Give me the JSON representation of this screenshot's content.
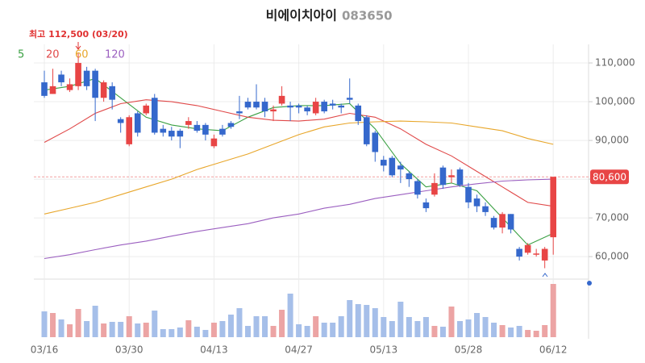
{
  "chart_data": {
    "type": "candlestick",
    "title": "비에이치아이",
    "subtitle": "083650",
    "annotation": "최고 112,500 (03/20)",
    "categories": [
      "03/16",
      null,
      null,
      null,
      null,
      null,
      null,
      null,
      null,
      null,
      "03/30",
      null,
      null,
      null,
      null,
      null,
      null,
      null,
      null,
      null,
      "04/13",
      null,
      null,
      null,
      null,
      null,
      null,
      null,
      null,
      null,
      "04/27",
      null,
      null,
      null,
      null,
      null,
      null,
      null,
      null,
      null,
      "05/13",
      null,
      null,
      null,
      null,
      null,
      null,
      null,
      null,
      null,
      "05/28",
      null,
      null,
      null,
      null,
      null,
      null,
      null,
      null,
      null,
      "06/12"
    ],
    "ohlc": [
      [
        105000,
        108000,
        101000,
        101500
      ],
      [
        102000,
        108500,
        102000,
        104000
      ],
      [
        107000,
        108000,
        104000,
        105000
      ],
      [
        103000,
        106000,
        102500,
        104500
      ],
      [
        104000,
        112500,
        103000,
        110000
      ],
      [
        108000,
        109000,
        103000,
        104000
      ],
      [
        108000,
        108500,
        95000,
        101000
      ],
      [
        101000,
        105500,
        100000,
        105000
      ],
      [
        104000,
        105000,
        98000,
        100500
      ],
      [
        95500,
        96000,
        92000,
        94500
      ],
      [
        89000,
        96500,
        88500,
        96000
      ],
      [
        97000,
        97500,
        91000,
        92000
      ],
      [
        97000,
        99500,
        96500,
        99000
      ],
      [
        101000,
        102000,
        91500,
        92000
      ],
      [
        93000,
        94000,
        91000,
        92000
      ],
      [
        92500,
        93500,
        90000,
        91000
      ],
      [
        92500,
        93000,
        88000,
        91000
      ],
      [
        94000,
        96000,
        93000,
        95000
      ],
      [
        94000,
        95000,
        92000,
        92500
      ],
      [
        94000,
        94500,
        90000,
        91500
      ],
      [
        88500,
        91500,
        88000,
        90500
      ],
      [
        93000,
        94000,
        91000,
        91500
      ],
      [
        94500,
        95000,
        93000,
        93500
      ],
      [
        97500,
        101500,
        95500,
        97000
      ],
      [
        100000,
        101000,
        98000,
        98500
      ],
      [
        100000,
        104500,
        98000,
        98500
      ],
      [
        100000,
        101000,
        96000,
        97500
      ],
      [
        97500,
        99000,
        95000,
        98000
      ],
      [
        99500,
        104000,
        99000,
        101500
      ],
      [
        99000,
        100000,
        95000,
        98500
      ],
      [
        99000,
        99500,
        97000,
        98500
      ],
      [
        98500,
        99000,
        96500,
        97500
      ],
      [
        97000,
        101000,
        96500,
        100000
      ],
      [
        100000,
        100500,
        97000,
        97500
      ],
      [
        99500,
        100500,
        98000,
        99000
      ],
      [
        99000,
        99500,
        97000,
        98500
      ],
      [
        101000,
        106000,
        99500,
        100500
      ],
      [
        99000,
        99500,
        94000,
        95000
      ],
      [
        96000,
        96500,
        88500,
        89000
      ],
      [
        92000,
        92500,
        84500,
        87000
      ],
      [
        85000,
        86000,
        82000,
        83500
      ],
      [
        85500,
        86000,
        80500,
        81000
      ],
      [
        83500,
        84500,
        79000,
        82500
      ],
      [
        81500,
        82000,
        78000,
        80000
      ],
      [
        79500,
        80000,
        75000,
        76000
      ],
      [
        74000,
        75000,
        71500,
        72500
      ],
      [
        76000,
        81500,
        75500,
        79000
      ],
      [
        83000,
        83500,
        77500,
        78500
      ],
      [
        80500,
        82500,
        79000,
        81000
      ],
      [
        82500,
        83000,
        78000,
        78500
      ],
      [
        78000,
        79000,
        72500,
        74000
      ],
      [
        75000,
        76000,
        71500,
        73000
      ],
      [
        73000,
        74000,
        70500,
        71500
      ],
      [
        70000,
        70500,
        67000,
        67500
      ],
      [
        67500,
        71500,
        66000,
        71000
      ],
      [
        71000,
        71000,
        66000,
        67000
      ],
      [
        62000,
        62500,
        59000,
        60000
      ],
      [
        61000,
        63500,
        60500,
        63000
      ],
      [
        60500,
        62000,
        60000,
        60800
      ],
      [
        59000,
        62500,
        57000,
        62000
      ],
      [
        65000,
        80600,
        60500,
        80600
      ]
    ],
    "volume": [
      32,
      30,
      22,
      16,
      35,
      20,
      39,
      17,
      19,
      19,
      26,
      17,
      18,
      33,
      10,
      10,
      12,
      21,
      13,
      9,
      18,
      20,
      28,
      36,
      14,
      26,
      26,
      14,
      34,
      54,
      16,
      14,
      26,
      18,
      18,
      26,
      46,
      41,
      40,
      36,
      25,
      20,
      44,
      25,
      20,
      25,
      14,
      13,
      38,
      20,
      22,
      30,
      25,
      18,
      15,
      12,
      14,
      9,
      8,
      15,
      66
    ],
    "vlim": [
      0,
      70
    ],
    "ylim": [
      54400,
      114800
    ],
    "yticks": [
      {
        "value": 60000,
        "label": "60,000"
      },
      {
        "value": 70000,
        "label": "70,000"
      },
      {
        "value": 80000,
        "label": "80,000"
      },
      {
        "value": 90000,
        "label": "90,000"
      },
      {
        "value": 100000,
        "label": "100,000"
      },
      {
        "value": 110000,
        "label": "110,000"
      }
    ],
    "grid": true,
    "up_color": "#e84545",
    "down_color": "#3568cc",
    "up_volume_color": "#eca4a4",
    "down_volume_color": "#a6bfe9",
    "last_price": {
      "value": 80600,
      "label": "80,600"
    },
    "ma_x": [
      0,
      3,
      6,
      9,
      12,
      15,
      18,
      21,
      24,
      27,
      30,
      33,
      36,
      39,
      42,
      45,
      48,
      51,
      54,
      57,
      60
    ],
    "ma": [
      {
        "name": "5",
        "color": "#3aa043",
        "values": [
          103000,
          104000,
          106000,
          101000,
          96000,
          94000,
          93000,
          92500,
          96000,
          98500,
          99000,
          99000,
          99500,
          93000,
          84000,
          78000,
          79000,
          77000,
          70000,
          63000,
          66000
        ]
      },
      {
        "name": "20",
        "color": "#e04848",
        "values": [
          89500,
          93000,
          97000,
          99500,
          100500,
          100000,
          99000,
          97500,
          96000,
          95200,
          95000,
          95500,
          97000,
          96000,
          93000,
          89000,
          86000,
          82000,
          78000,
          74000,
          73000
        ]
      },
      {
        "name": "60",
        "color": "#e8a62a",
        "values": [
          71000,
          72500,
          74000,
          76000,
          78000,
          80000,
          82500,
          84500,
          86500,
          89000,
          91500,
          93500,
          94500,
          94800,
          95000,
          94800,
          94500,
          93500,
          92500,
          90500,
          89000
        ]
      },
      {
        "name": "120",
        "color": "#9b5fc0",
        "values": [
          59500,
          60500,
          61800,
          63000,
          64000,
          65300,
          66500,
          67500,
          68500,
          70000,
          71000,
          72500,
          73500,
          75000,
          76000,
          77000,
          78000,
          78800,
          79500,
          79800,
          80000
        ]
      }
    ]
  }
}
